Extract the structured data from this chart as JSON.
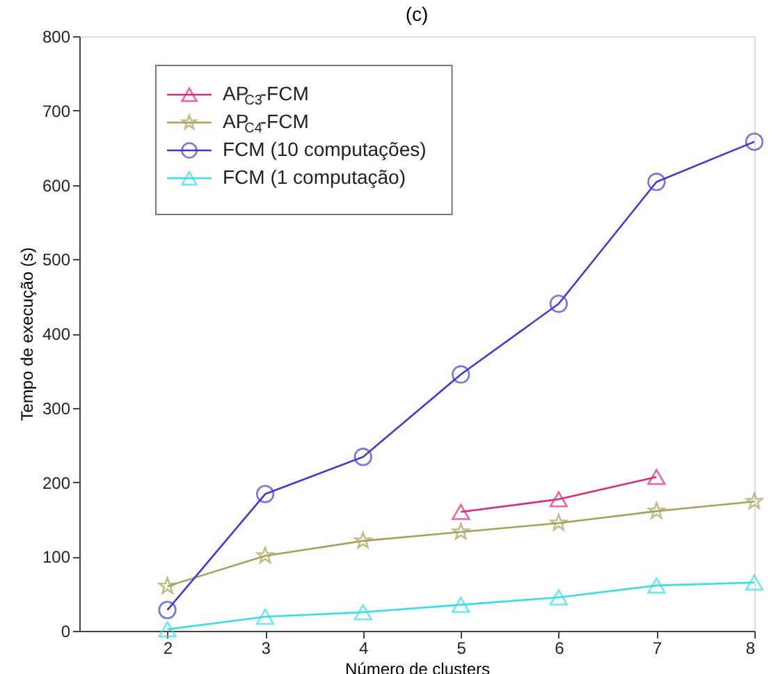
{
  "chart_data": {
    "type": "line",
    "title": "(c)",
    "xlabel": "Número de clusters",
    "ylabel": "Tempo de execução (s)",
    "xlim": [
      1.1,
      8
    ],
    "xticks": [
      2,
      3,
      4,
      5,
      6,
      7,
      8
    ],
    "ylim": [
      0,
      800
    ],
    "yticks": [
      0,
      100,
      200,
      300,
      400,
      500,
      600,
      700,
      800
    ],
    "grid": false,
    "legend": "top left",
    "line_style": "solid",
    "series": [
      {
        "name": "AP$_{C3}$-FCM",
        "color": "#e0287a",
        "marker": "triangle",
        "x": [
          5,
          6,
          7
        ],
        "values": [
          160,
          177,
          207
        ]
      },
      {
        "name": "AP$_{C4}$-FCM",
        "color": "#a6a357",
        "marker": "star",
        "x": [
          2,
          3,
          4,
          5,
          6,
          7,
          8
        ],
        "values": [
          60,
          101,
          121,
          133,
          145,
          161,
          174
        ]
      },
      {
        "name": "FCM (10 computações)",
        "color": "#3b3bdc",
        "marker": "circle",
        "x": [
          2,
          3,
          4,
          5,
          6,
          7,
          8
        ],
        "values": [
          28,
          184,
          234,
          345,
          440,
          604,
          658
        ]
      },
      {
        "name": "FCM (1 computação)",
        "color": "#33e0ea",
        "marker": "triangle",
        "x": [
          2,
          3,
          4,
          5,
          6,
          7,
          8
        ],
        "values": [
          2,
          19,
          25,
          35,
          45,
          61,
          65
        ]
      }
    ]
  }
}
